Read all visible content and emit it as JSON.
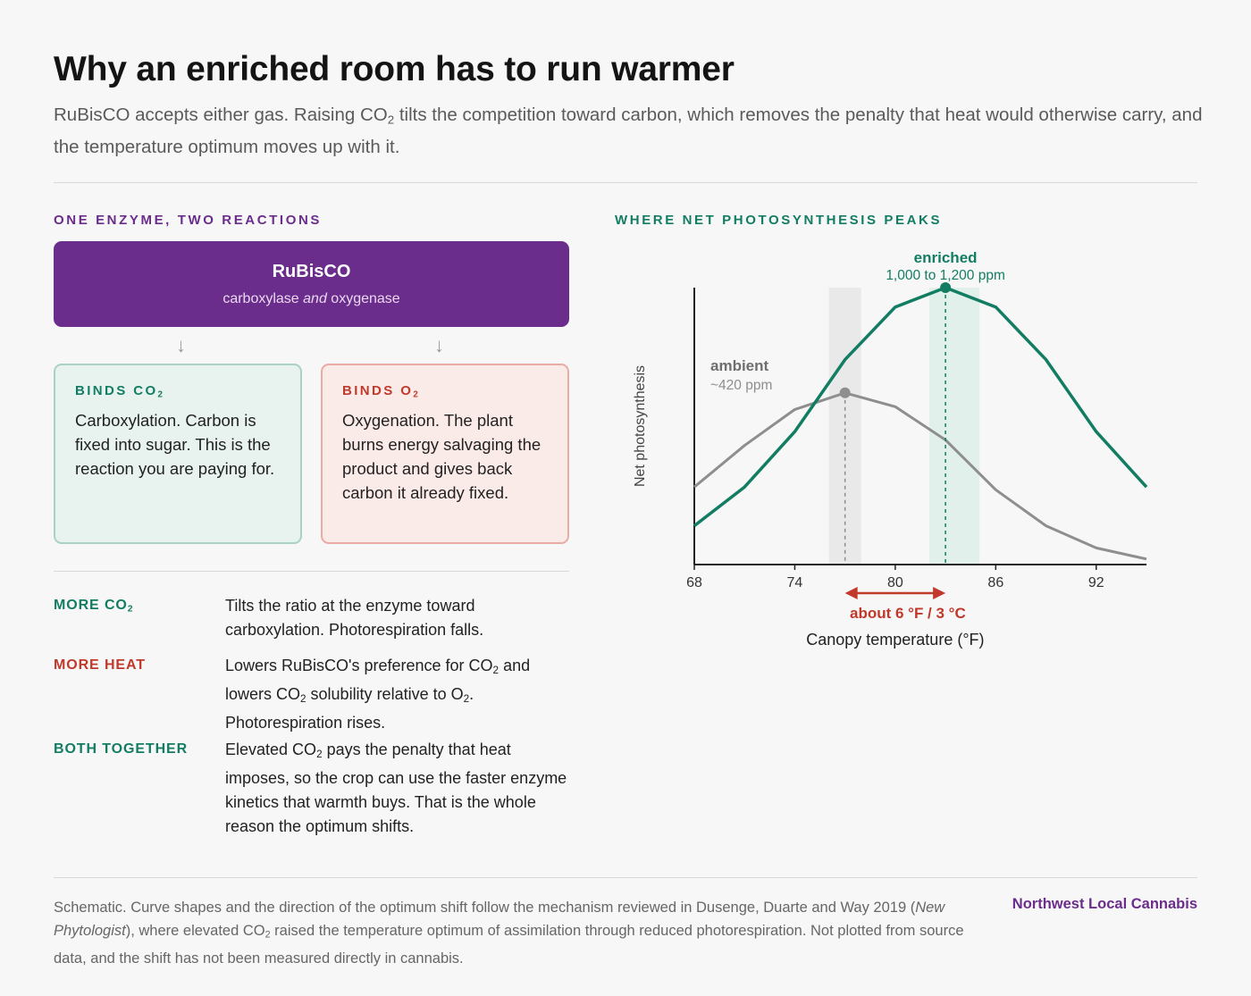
{
  "header": {
    "title": "Why an enriched room has to run warmer",
    "subtitle_a": "RuBisCO accepts either gas. Raising CO",
    "subtitle_b": " tilts the competition toward carbon, which removes the penalty that heat would otherwise carry, and the temperature optimum moves up with it."
  },
  "left": {
    "kicker": "ONE ENZYME, TWO REACTIONS",
    "rubisco": {
      "name": "RuBisCO",
      "sub_a": "carboxylase ",
      "sub_and": "and",
      "sub_b": " oxygenase"
    },
    "arrow": "↓",
    "box_co2": {
      "heading": "BINDS CO",
      "text": "Carboxylation. Carbon is fixed into sugar. This is the reaction you are paying for."
    },
    "box_o2": {
      "heading": "BINDS O",
      "text": "Oxygenation. The plant burns energy salvaging the product and gives back carbon it already fixed."
    },
    "effects": [
      {
        "key_a": "MORE CO",
        "key_sub": "2",
        "text": "Tilts the ratio at the enzyme toward carboxylation. Photorespiration falls."
      },
      {
        "key": "MORE HEAT",
        "t1": "Lowers RuBisCO's preference for CO",
        "t2": " and lowers CO",
        "t3": " solubility relative to O",
        "t4": ". Photorespiration rises."
      },
      {
        "key": "BOTH TOGETHER",
        "t1": "Elevated CO",
        "t2": " pays the penalty that heat imposes, so the crop can use the faster enzyme kinetics that warmth buys. That is the whole reason the optimum shifts."
      }
    ]
  },
  "right": {
    "kicker": "WHERE NET PHOTOSYNTHESIS PEAKS"
  },
  "chart_data": {
    "type": "line",
    "xlabel": "Canopy temperature (°F)",
    "ylabel": "Net photosynthesis",
    "xlim": [
      68,
      95
    ],
    "ylim": [
      0,
      10
    ],
    "x_ticks": [
      68,
      74,
      80,
      86,
      92
    ],
    "series": [
      {
        "name": "ambient",
        "note": "~420 ppm",
        "color": "#8e8e8e",
        "x": [
          68,
          71,
          74,
          77,
          80,
          83,
          86,
          89,
          92,
          95
        ],
        "y": [
          2.8,
          4.3,
          5.6,
          6.2,
          5.7,
          4.5,
          2.7,
          1.4,
          0.6,
          0.2
        ],
        "peak_x": 77
      },
      {
        "name": "enriched",
        "note": "1,000 to 1,200 ppm",
        "color": "#137d63",
        "x": [
          68,
          71,
          74,
          77,
          80,
          83,
          86,
          89,
          92,
          95
        ],
        "y": [
          1.4,
          2.8,
          4.8,
          7.4,
          9.3,
          10.0,
          9.3,
          7.4,
          4.8,
          2.8
        ],
        "peak_x": 83
      }
    ],
    "annotation": {
      "text": "about 6 °F / 3 °C",
      "from_x": 77,
      "to_x": 83,
      "color": "#c0392b"
    }
  },
  "footer": {
    "note_a": "Schematic. Curve shapes and the direction of the optimum shift follow the mechanism reviewed in Dusenge, Duarte and Way 2019 (",
    "journal": "New Phytologist",
    "note_b": "), where elevated CO",
    "note_c": " raised the temperature optimum of assimilation through reduced photorespiration. Not plotted from source data, and the shift has not been measured directly in cannabis.",
    "brand": "Northwest Local Cannabis"
  },
  "sub2": "2"
}
